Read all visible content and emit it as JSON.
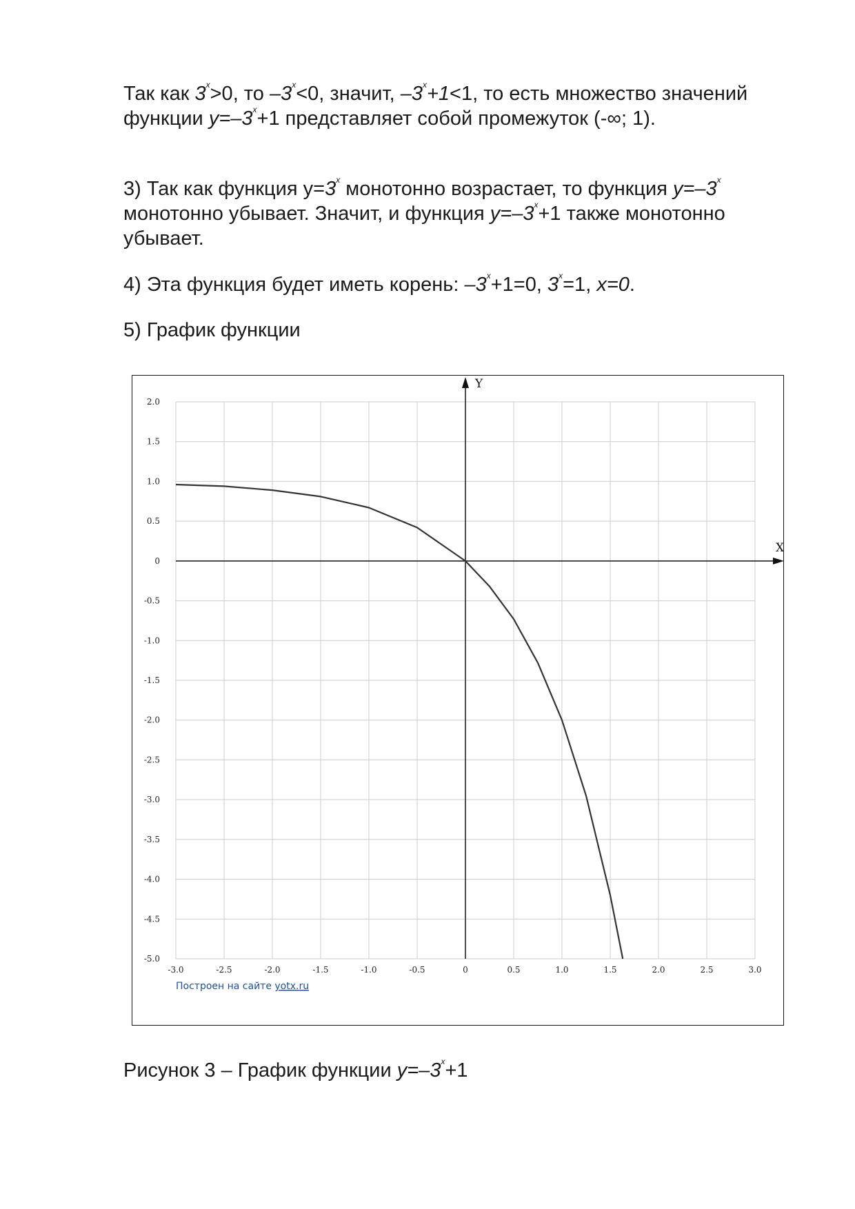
{
  "paragraphs": {
    "p1": {
      "a": "Так как ",
      "b": "3",
      "c": "x",
      "d": ">0, то ",
      "e": "–3",
      "f": "x",
      "g": "<0, значит, ",
      "h": "–3",
      "i": "x",
      "j": "+1",
      "k": "<1, то есть множество значений функции ",
      "l": "y=–3",
      "m": "x",
      "n": "+1 представляет собой промежуток (-∞; 1)."
    },
    "p2": {
      "a": "3) Так как функция у=",
      "b": "3",
      "c": "x",
      "d": " монотонно возрастает, то функция ",
      "e": "y=–3",
      "f": "x",
      "g": " монотонно убывает. Значит, и функция ",
      "h": "y=–3",
      "i": "x",
      "j": "+1 также монотонно убывает."
    },
    "p3": {
      "a": "4) Эта функция будет иметь корень: ",
      "b": "–3",
      "c": "x",
      "d": "+1=0, ",
      "e": "3",
      "f": "x",
      "g": "=1, ",
      "h": "x=0",
      "i": "."
    },
    "p4": {
      "text": "5) График функции"
    },
    "caption": {
      "a": "Рисунок 3 – График функции ",
      "b": "y=–3",
      "c": "x",
      "d": "+1"
    }
  },
  "chart_data": {
    "type": "line",
    "xlabel": "X",
    "ylabel": "Y",
    "xlim": [
      -3.0,
      3.0
    ],
    "ylim": [
      -5.0,
      2.0
    ],
    "x_ticks": [
      "-3.0",
      "-2.5",
      "-2.0",
      "-1.5",
      "-1.0",
      "-0.5",
      "0",
      "0.5",
      "1.0",
      "1.5",
      "2.0",
      "2.5",
      "3.0"
    ],
    "y_ticks": [
      "2.0",
      "1.5",
      "1.0",
      "0.5",
      "0",
      "-0.5",
      "-1.0",
      "-1.5",
      "-2.0",
      "-2.5",
      "-3.0",
      "-3.5",
      "-4.0",
      "-4.5",
      "-5.0"
    ],
    "grid": true,
    "series": [
      {
        "x": [
          -3.0,
          -2.5,
          -2.0,
          -1.5,
          -1.0,
          -0.5,
          0.0,
          0.25,
          0.5,
          0.75,
          1.0,
          1.25,
          1.5,
          1.63
        ],
        "y": [
          0.96,
          0.94,
          0.89,
          0.81,
          0.67,
          0.42,
          0.0,
          -0.32,
          -0.73,
          -1.28,
          -2.0,
          -2.95,
          -4.2,
          -5.0
        ]
      }
    ],
    "colors": {
      "curve": "#333333",
      "grid": "#cccccc",
      "axis": "#111111",
      "credit": "#1f4e9a"
    },
    "credit": {
      "prefix": "Построен на сайте ",
      "link": "yotx.ru"
    }
  }
}
